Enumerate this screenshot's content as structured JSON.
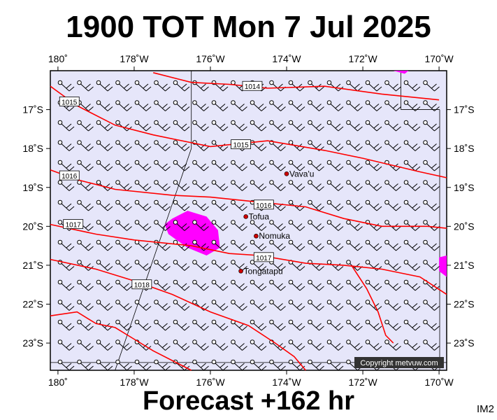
{
  "header": {
    "title": "1900 TOT Mon 7 Jul 2025"
  },
  "footer": {
    "forecast": "Forecast +162 hr",
    "image_code": "IM2"
  },
  "copyright": "Copyright metvuw.com",
  "colors": {
    "ocean": "#e6e6fa",
    "isobar": "#ff0000",
    "precip": "#ff00ff",
    "wind": "#000000",
    "place": "#cc0000"
  },
  "map": {
    "lon_range": [
      -180.2,
      -169.8
    ],
    "lat_range": [
      -23.7,
      -16.0
    ],
    "lon_ticks": [
      {
        "lon": -180,
        "label": "180˚"
      },
      {
        "lon": -178,
        "label": "178˚W"
      },
      {
        "lon": -176,
        "label": "176˚W"
      },
      {
        "lon": -174,
        "label": "174˚W"
      },
      {
        "lon": -172,
        "label": "172˚W"
      },
      {
        "lon": -170,
        "label": "170˚W"
      }
    ],
    "lat_ticks": [
      {
        "lat": -17,
        "label": "17˚S"
      },
      {
        "lat": -18,
        "label": "18˚S"
      },
      {
        "lat": -19,
        "label": "19˚S"
      },
      {
        "lat": -20,
        "label": "20˚S"
      },
      {
        "lat": -21,
        "label": "21˚S"
      },
      {
        "lat": -22,
        "label": "22˚S"
      },
      {
        "lat": -23,
        "label": "23˚S"
      }
    ],
    "places": [
      {
        "name": "Vava'u",
        "lon": -174.0,
        "lat": -18.65
      },
      {
        "name": "Tofua",
        "lon": -175.07,
        "lat": -19.75
      },
      {
        "name": "Nomuka",
        "lon": -174.8,
        "lat": -20.25
      },
      {
        "name": "Tongatapu",
        "lon": -175.2,
        "lat": -21.15
      }
    ],
    "isobars": [
      {
        "label": "1014",
        "label_at": [
          -174.9,
          -16.4
        ],
        "points": [
          [
            -177.5,
            -16.05
          ],
          [
            -176.5,
            -16.3
          ],
          [
            -175.5,
            -16.35
          ],
          [
            -174.5,
            -16.45
          ],
          [
            -173,
            -16.4
          ],
          [
            -171.5,
            -16.6
          ],
          [
            -170,
            -16.75
          ]
        ]
      },
      {
        "label": "1015",
        "label_at": [
          -179.7,
          -16.8
        ],
        "points": [
          [
            -180.2,
            -16.4
          ],
          [
            -179.5,
            -16.9
          ],
          [
            -178.5,
            -17.4
          ],
          [
            -177.5,
            -17.65
          ],
          [
            -176,
            -17.95
          ],
          [
            -174.5,
            -17.8
          ],
          [
            -173,
            -18.05
          ],
          [
            -172,
            -18.25
          ],
          [
            -170.5,
            -18.6
          ],
          [
            -169.8,
            -18.75
          ]
        ]
      },
      {
        "label": "1015",
        "label_at": [
          -175.2,
          -17.9
        ],
        "points": []
      },
      {
        "label": "1016",
        "label_at": [
          -179.7,
          -18.7
        ],
        "points": [
          [
            -180.2,
            -18.55
          ],
          [
            -179.5,
            -18.8
          ],
          [
            -178.5,
            -19.05
          ],
          [
            -177,
            -19.2
          ],
          [
            -176,
            -19.25
          ],
          [
            -175,
            -19.35
          ],
          [
            -173.5,
            -19.5
          ],
          [
            -172.5,
            -19.8
          ],
          [
            -171.5,
            -20.0
          ],
          [
            -170.3,
            -20.0
          ],
          [
            -169.8,
            -20.05
          ]
        ]
      },
      {
        "label": "1016",
        "label_at": [
          -174.6,
          -19.45
        ],
        "points": []
      },
      {
        "label": "1017",
        "label_at": [
          -179.6,
          -19.95
        ],
        "points": [
          [
            -180.2,
            -19.95
          ],
          [
            -179,
            -20.2
          ],
          [
            -178,
            -20.35
          ],
          [
            -176.5,
            -20.5
          ],
          [
            -175.5,
            -20.7
          ],
          [
            -174.7,
            -20.75
          ],
          [
            -173.5,
            -20.95
          ],
          [
            -172.5,
            -21.0
          ],
          [
            -171.5,
            -21.1
          ],
          [
            -170.5,
            -21.3
          ],
          [
            -169.8,
            -21.75
          ]
        ]
      },
      {
        "label": "1017",
        "label_at": [
          -174.6,
          -20.8
        ],
        "points": []
      },
      {
        "label": "1018",
        "label_at": [
          -177.8,
          -21.5
        ],
        "points": [
          [
            -180.2,
            -20.85
          ],
          [
            -179,
            -21.1
          ],
          [
            -178,
            -21.4
          ],
          [
            -177,
            -21.75
          ],
          [
            -176,
            -22.2
          ],
          [
            -175,
            -22.55
          ],
          [
            -174.3,
            -23.0
          ],
          [
            -173.8,
            -23.35
          ],
          [
            -173.5,
            -23.7
          ]
        ]
      },
      {
        "label": "",
        "label_at": null,
        "points": [
          [
            -180.2,
            -22.3
          ],
          [
            -179.5,
            -22.2
          ],
          [
            -179,
            -22.5
          ],
          [
            -178.5,
            -22.6
          ],
          [
            -178,
            -22.9
          ],
          [
            -177.5,
            -23.2
          ],
          [
            -177,
            -23.45
          ],
          [
            -176.5,
            -23.7
          ]
        ]
      },
      {
        "label": "",
        "label_at": null,
        "points": [
          [
            -172.3,
            -21.0
          ],
          [
            -171.9,
            -21.6
          ],
          [
            -171.6,
            -22.2
          ],
          [
            -171.4,
            -22.8
          ],
          [
            -171.2,
            -23.0
          ]
        ]
      }
    ],
    "precip": [
      {
        "points": [
          [
            -177.0,
            -19.8
          ],
          [
            -176.6,
            -19.6
          ],
          [
            -176.1,
            -19.75
          ],
          [
            -175.8,
            -20.1
          ],
          [
            -175.75,
            -20.55
          ],
          [
            -176.1,
            -20.75
          ],
          [
            -176.6,
            -20.55
          ],
          [
            -177.1,
            -20.2
          ],
          [
            -177.2,
            -19.95
          ]
        ]
      },
      {
        "points": [
          [
            -171.2,
            -16.0
          ],
          [
            -170.8,
            -16.0
          ],
          [
            -170.9,
            -16.08
          ]
        ]
      },
      {
        "points": [
          [
            -170.0,
            -20.8
          ],
          [
            -169.8,
            -20.75
          ],
          [
            -169.8,
            -21.3
          ],
          [
            -170.0,
            -21.15
          ]
        ]
      }
    ]
  }
}
